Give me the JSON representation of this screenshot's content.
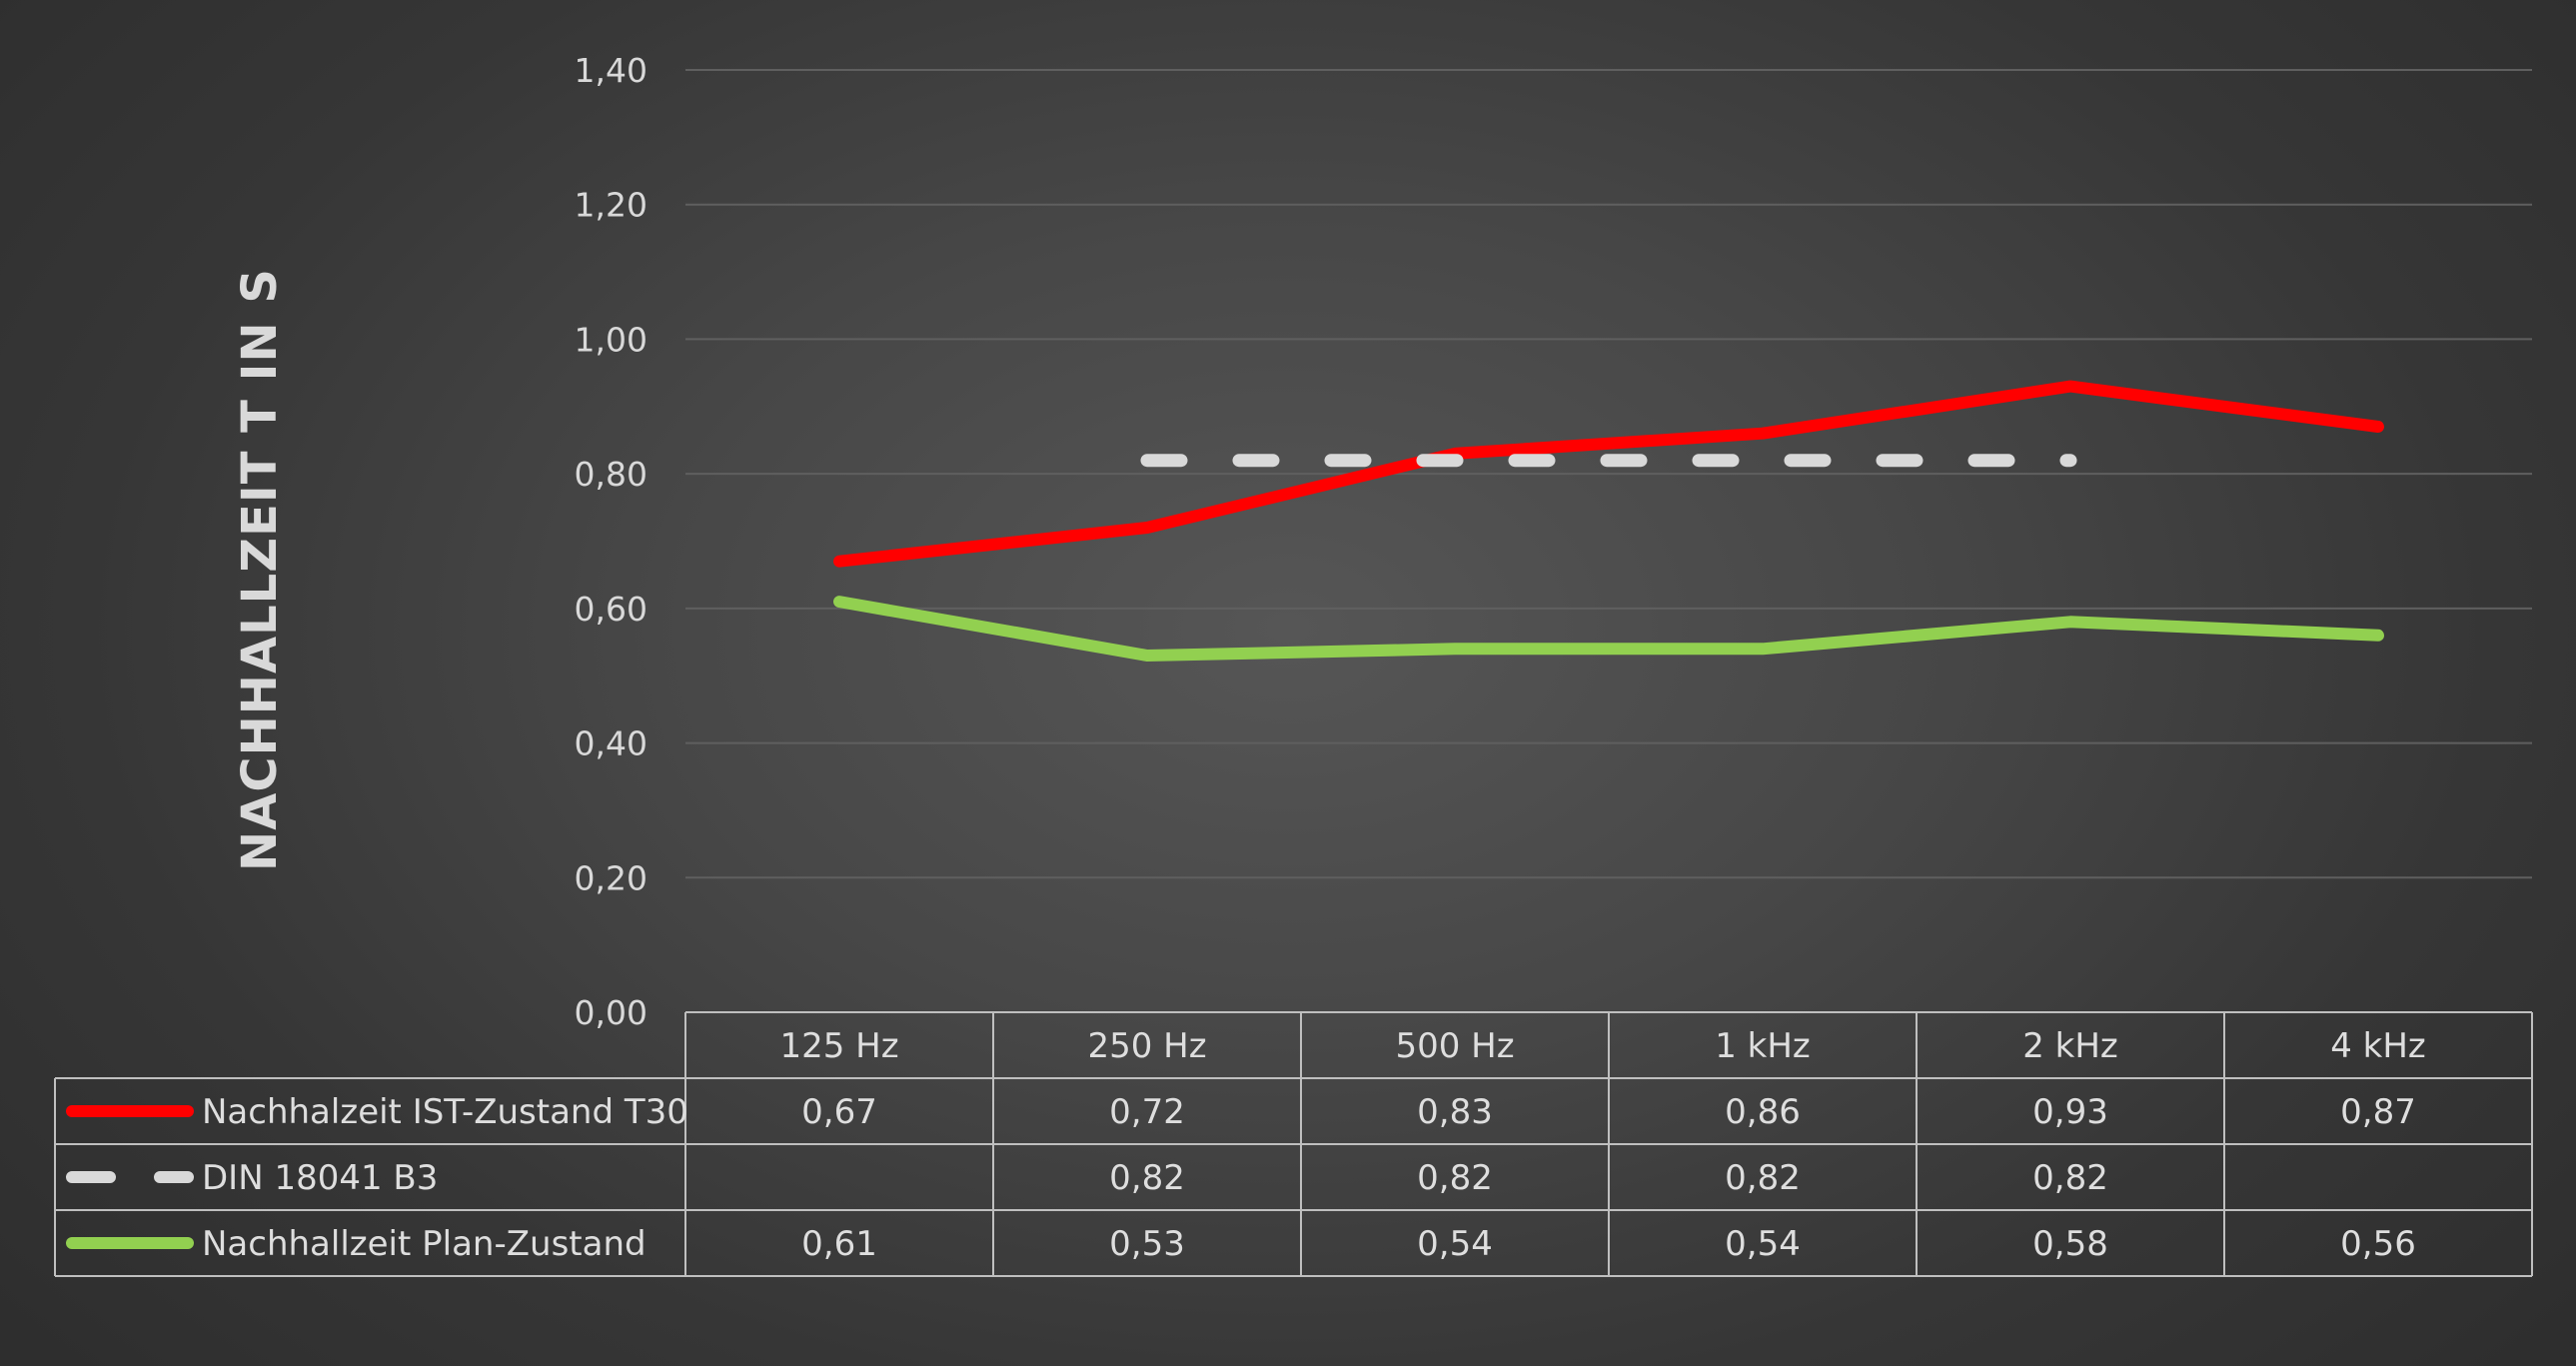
{
  "chart_data": {
    "type": "line",
    "title": "",
    "ylabel": "NACHHALLZEIT T IN S",
    "xlabel": "",
    "categories": [
      "125 Hz",
      "250 Hz",
      "500 Hz",
      "1 kHz",
      "2 kHz",
      "4 kHz"
    ],
    "ylim": [
      0,
      1.4
    ],
    "yticks": [
      0,
      0.2,
      0.4,
      0.6,
      0.8,
      1.0,
      1.2,
      1.4
    ],
    "ytick_labels": [
      "0,00",
      "0,20",
      "0,40",
      "0,60",
      "0,80",
      "1,00",
      "1,20",
      "1,40"
    ],
    "grid": true,
    "legend": "data-table",
    "series": [
      {
        "name": "Nachhalzeit IST-Zustand T30",
        "color": "#ff0000",
        "style": "solid",
        "values": [
          0.67,
          0.72,
          0.83,
          0.86,
          0.93,
          0.87
        ],
        "labels": [
          "0,67",
          "0,72",
          "0,83",
          "0,86",
          "0,93",
          "0,87"
        ]
      },
      {
        "name": "DIN 18041 B3",
        "color": "#d9d9d9",
        "style": "dashed",
        "values": [
          null,
          0.82,
          0.82,
          0.82,
          0.82,
          null
        ],
        "labels": [
          "",
          "0,82",
          "0,82",
          "0,82",
          "0,82",
          ""
        ]
      },
      {
        "name": "Nachhallzeit Plan-Zustand",
        "color": "#92d050",
        "style": "solid",
        "values": [
          0.61,
          0.53,
          0.54,
          0.54,
          0.58,
          0.56
        ],
        "labels": [
          "0,61",
          "0,53",
          "0,54",
          "0,54",
          "0,58",
          "0,56"
        ]
      }
    ]
  }
}
